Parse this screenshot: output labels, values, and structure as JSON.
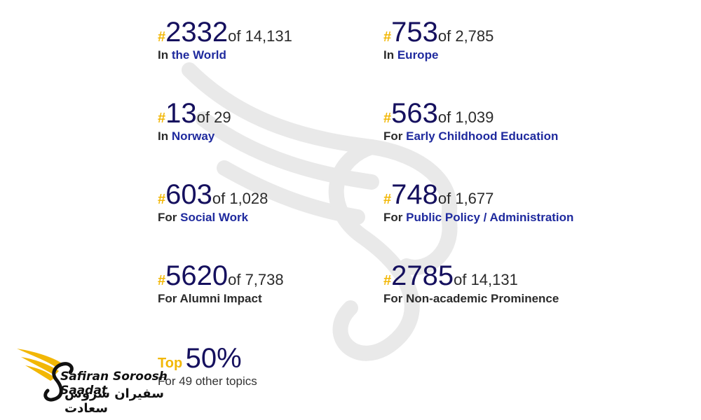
{
  "rankings": [
    {
      "rank": "2332",
      "of": "of 14,131",
      "prefix": "In",
      "scope": "the World"
    },
    {
      "rank": "753",
      "of": "of 2,785",
      "prefix": "In",
      "scope": "Europe"
    },
    {
      "rank": "13",
      "of": "of 29",
      "prefix": "In",
      "scope": "Norway"
    },
    {
      "rank": "563",
      "of": "of 1,039",
      "prefix": "For",
      "scope": "Early Childhood Education"
    },
    {
      "rank": "603",
      "of": "of 1,028",
      "prefix": "For",
      "scope": "Social Work"
    },
    {
      "rank": "748",
      "of": "of 1,677",
      "prefix": "For",
      "scope": "Public Policy / Administration"
    },
    {
      "rank": "5620",
      "of": "of 7,738",
      "label": "For Alumni Impact"
    },
    {
      "rank": "2785",
      "of": "of 14,131",
      "label": "For Non-academic Prominence"
    }
  ],
  "hash_symbol": "#",
  "top": {
    "word": "Top",
    "percent": "50%",
    "label": "For 49 other topics"
  },
  "logo": {
    "name_en": "Safiran Soroosh Saadat",
    "name_fa": "سفیران سروش سعادت"
  },
  "colors": {
    "accent": "#f2b705",
    "rank_number": "#15105e",
    "link": "#1f2a9e"
  }
}
